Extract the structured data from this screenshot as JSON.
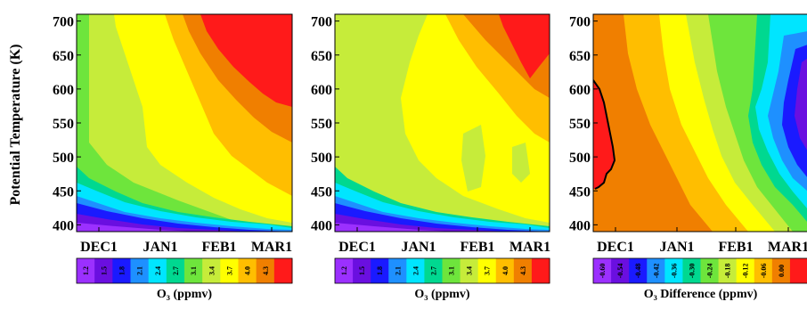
{
  "figure": {
    "ylabel": "Potential Temperature (K)"
  },
  "chart_data": [
    {
      "type": "heatmap",
      "panel": "left",
      "x_ticks": [
        "DEC1",
        "JAN1",
        "FEB1",
        "MAR1"
      ],
      "y_ticks": [
        400,
        450,
        500,
        550,
        600,
        650,
        700
      ],
      "ylim": [
        390,
        710
      ],
      "colorbar": {
        "label": "O₃ (ppmv)",
        "levels": [
          "1.2",
          "1.5",
          "1.8",
          "2.1",
          "2.4",
          "2.7",
          "3.1",
          "3.4",
          "3.7",
          "4.0",
          "4.3"
        ],
        "colors": [
          "#9b30ff",
          "#6a0fe0",
          "#1a1aff",
          "#1e90ff",
          "#00e5ff",
          "#00d890",
          "#6ee53c",
          "#c6ec3a",
          "#ffff00",
          "#ffbe00",
          "#f07f00",
          "#ff1a1a"
        ]
      },
      "contour_levels_ppmv": [
        {
          "level": "1.2",
          "y_at_start": 400,
          "y_at_end": 390
        },
        {
          "level": "1.5",
          "y_at_start": 413,
          "y_at_end": 391
        },
        {
          "level": "1.8",
          "y_at_start": 423,
          "y_at_end": 393
        },
        {
          "level": "2.1",
          "y_at_start": 440,
          "y_at_end": 398
        },
        {
          "level": "2.4",
          "y_at_start": 460,
          "y_at_end": 403
        },
        {
          "level": "2.7",
          "y_at_start": 478,
          "y_at_end": 408
        }
      ]
    },
    {
      "type": "heatmap",
      "panel": "middle",
      "x_ticks": [
        "DEC1",
        "JAN1",
        "FEB1",
        "MAR1"
      ],
      "y_ticks": [
        400,
        450,
        500,
        550,
        600,
        650,
        700
      ],
      "ylim": [
        390,
        710
      ],
      "colorbar": {
        "label": "O₃ (ppmv)",
        "levels": [
          "1.2",
          "1.5",
          "1.8",
          "2.1",
          "2.4",
          "2.7",
          "3.1",
          "3.4",
          "3.7",
          "4.0",
          "4.3"
        ],
        "colors": [
          "#9b30ff",
          "#6a0fe0",
          "#1a1aff",
          "#1e90ff",
          "#00e5ff",
          "#00d890",
          "#6ee53c",
          "#c6ec3a",
          "#ffff00",
          "#ffbe00",
          "#f07f00",
          "#ff1a1a"
        ]
      }
    },
    {
      "type": "heatmap",
      "panel": "right",
      "x_ticks": [
        "DEC1",
        "JAN1",
        "FEB1",
        "MAR1"
      ],
      "y_ticks": [
        400,
        450,
        500,
        550,
        600,
        650,
        700
      ],
      "ylim": [
        390,
        710
      ],
      "colorbar": {
        "label": "O₃ Difference (ppmv)",
        "levels": [
          "-0.60",
          "-0.54",
          "-0.48",
          "-0.42",
          "-0.36",
          "-0.30",
          "-0.24",
          "-0.18",
          "-0.12",
          "-0.06",
          "0.00"
        ],
        "colors": [
          "#9b30ff",
          "#6a0fe0",
          "#1a1aff",
          "#1e90ff",
          "#00e5ff",
          "#00d890",
          "#6ee53c",
          "#c6ec3a",
          "#ffff00",
          "#ffbe00",
          "#f07f00",
          "#ff1a1a"
        ]
      }
    }
  ]
}
